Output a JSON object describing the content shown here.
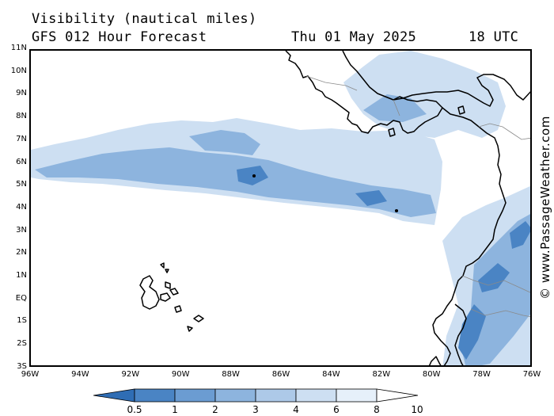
{
  "header": {
    "line1": "Visibility (nautical miles)",
    "model_run": "GFS 012 Hour Forecast",
    "valid_date": "Thu 01 May 2025",
    "valid_time": "18 UTC"
  },
  "watermark": "© www.PassageWeather.com",
  "axes": {
    "lat_labels": [
      "11N",
      "10N",
      "9N",
      "8N",
      "7N",
      "6N",
      "5N",
      "4N",
      "3N",
      "2N",
      "1N",
      "EQ",
      "1S",
      "2S",
      "3S"
    ],
    "lon_labels": [
      "96W",
      "94W",
      "92W",
      "90W",
      "88W",
      "86W",
      "84W",
      "82W",
      "80W",
      "78W",
      "76W"
    ]
  },
  "legend": {
    "labels": [
      "0.5",
      "1",
      "2",
      "3",
      "4",
      "6",
      "8",
      "10"
    ],
    "colors": [
      "#2f6db4",
      "#4a84c4",
      "#6b9cd2",
      "#8db4de",
      "#adc9e8",
      "#cddff2",
      "#e6f0fa",
      "#ffffff"
    ]
  },
  "map_style": {
    "coastline_color": "#000000",
    "shade_colors": {
      "dense": "#4a84c4",
      "medium": "#8db4de",
      "light": "#cddff2"
    }
  }
}
